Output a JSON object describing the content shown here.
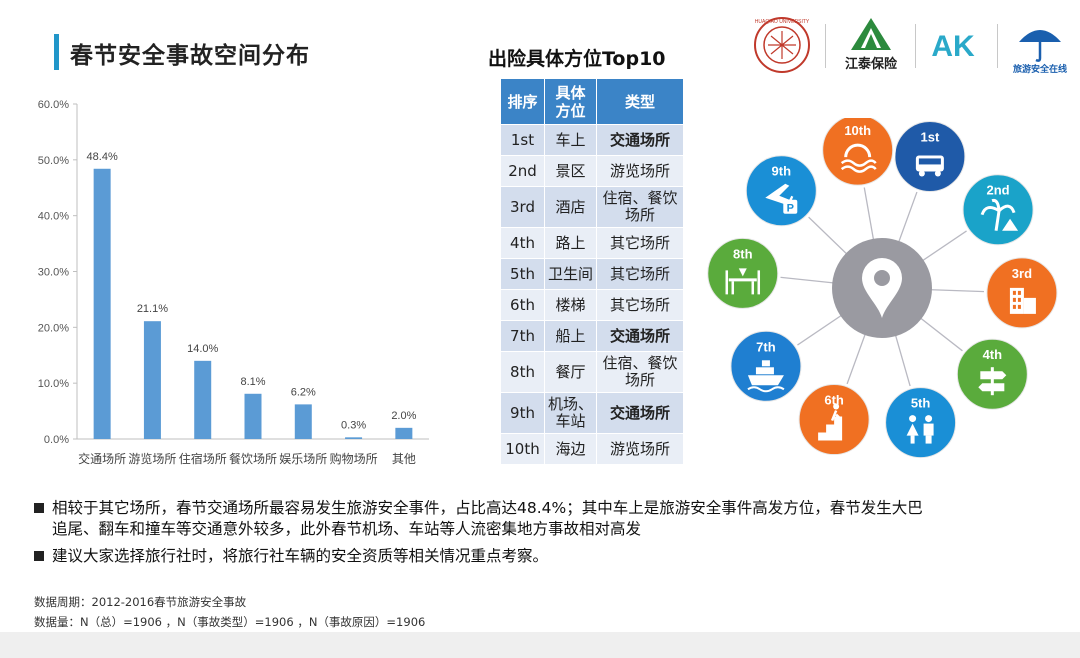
{
  "page": {
    "title": "春节安全事故空间分布"
  },
  "logos": {
    "university_text": "HUAQIAO UNIVERSITY",
    "jiangtai_text": "江泰保险",
    "ak_text": "AK",
    "safety_text": "旅游安全在线"
  },
  "chart_data": {
    "type": "bar",
    "title": "",
    "xlabel": "",
    "ylabel": "",
    "categories": [
      "交通场所",
      "游览场所",
      "住宿场所",
      "餐饮场所",
      "娱乐场所",
      "购物场所",
      "其他"
    ],
    "values": [
      48.4,
      21.1,
      14.0,
      8.1,
      6.2,
      0.3,
      2.0
    ],
    "data_labels": [
      "48.4%",
      "21.1%",
      "14.0%",
      "8.1%",
      "6.2%",
      "0.3%",
      "2.0%"
    ],
    "ylim": [
      0,
      60
    ],
    "yticks": [
      "0.0%",
      "10.0%",
      "20.0%",
      "30.0%",
      "40.0%",
      "50.0%",
      "60.0%"
    ],
    "grid": false,
    "bar_color": "#5b9bd5"
  },
  "table": {
    "title": "出险具体方位Top10",
    "headers": [
      "排序",
      "具体方位",
      "类型"
    ],
    "rows": [
      {
        "rank": "1st",
        "place": "车上",
        "type": "交通场所",
        "bold": true
      },
      {
        "rank": "2nd",
        "place": "景区",
        "type": "游览场所",
        "bold": false
      },
      {
        "rank": "3rd",
        "place": "酒店",
        "type": "住宿、餐饮场所",
        "bold": false
      },
      {
        "rank": "4th",
        "place": "路上",
        "type": "其它场所",
        "bold": false
      },
      {
        "rank": "5th",
        "place": "卫生间",
        "type": "其它场所",
        "bold": false
      },
      {
        "rank": "6th",
        "place": "楼梯",
        "type": "其它场所",
        "bold": false
      },
      {
        "rank": "7th",
        "place": "船上",
        "type": "交通场所",
        "bold": true
      },
      {
        "rank": "8th",
        "place": "餐厅",
        "type": "住宿、餐饮场所",
        "bold": false
      },
      {
        "rank": "9th",
        "place": "机场、车站",
        "type": "交通场所",
        "bold": true
      },
      {
        "rank": "10th",
        "place": "海边",
        "type": "游览场所",
        "bold": false
      }
    ]
  },
  "hub": {
    "center_icon": "location-pin-icon",
    "nodes": [
      {
        "label": "1st",
        "icon": "bus-icon",
        "color": "#1f5aa8"
      },
      {
        "label": "2nd",
        "icon": "palm-tree-icon",
        "color": "#1aa3c9"
      },
      {
        "label": "3rd",
        "icon": "hotel-icon",
        "color": "#f07022"
      },
      {
        "label": "4th",
        "icon": "signpost-icon",
        "color": "#5aab3c"
      },
      {
        "label": "5th",
        "icon": "restroom-icon",
        "color": "#1a8fd6"
      },
      {
        "label": "6th",
        "icon": "stairs-icon",
        "color": "#f07022"
      },
      {
        "label": "7th",
        "icon": "ship-icon",
        "color": "#1f7fd1"
      },
      {
        "label": "8th",
        "icon": "dining-icon",
        "color": "#5aab3c"
      },
      {
        "label": "9th",
        "icon": "airport-icon",
        "color": "#1a8fd6"
      },
      {
        "label": "10th",
        "icon": "waves-icon",
        "color": "#f07022"
      }
    ]
  },
  "notes": [
    "相较于其它场所，春节交通场所最容易发生旅游安全事件，占比高达48.4%；其中车上是旅游安全事件高发方位，春节发生大巴追尾、翻车和撞车等交通意外较多，此外春节机场、车站等人流密集地方事故相对高发",
    "建议大家选择旅行社时，将旅行社车辆的安全资质等相关情况重点考察。"
  ],
  "meta": {
    "period": "数据周期：2012-2016春节旅游安全事故",
    "sample": "数据量：N（总）=1906 ，N（事故类型）=1906 ，N（事故原因）=1906"
  }
}
